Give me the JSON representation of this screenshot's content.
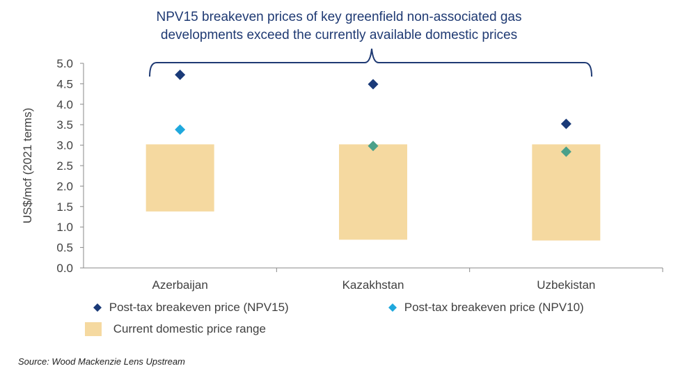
{
  "chart_data": {
    "type": "range-bar-with-markers",
    "title_lines": [
      "NPV15 breakeven prices of key greenfield non-associated gas",
      "developments exceed the currently available domestic prices"
    ],
    "ylabel": "US$/mcf (2021 terms)",
    "xlabel": "",
    "ylim": [
      0,
      5
    ],
    "yticks": [
      "0.0",
      "0.5",
      "1.0",
      "1.5",
      "2.0",
      "2.5",
      "3.0",
      "3.5",
      "4.0",
      "4.5",
      "5.0"
    ],
    "categories": [
      "Azerbaijan",
      "Kazakhstan",
      "Uzbekistan"
    ],
    "domestic_price_range": [
      {
        "low": 1.38,
        "high": 3.02
      },
      {
        "low": 0.69,
        "high": 3.02
      },
      {
        "low": 0.67,
        "high": 3.02
      }
    ],
    "series": [
      {
        "name": "Post-tax breakeven price (NPV15)",
        "values": [
          4.72,
          4.49,
          3.52
        ],
        "color": "#1a3a78",
        "marker": "diamond"
      },
      {
        "name": "Post-tax breakeven price (NPV10)",
        "values": [
          3.38,
          2.98,
          2.84
        ],
        "color": "#1fa8dd",
        "marker": "diamond"
      }
    ],
    "range_legend": "Current domestic price range",
    "range_color": "#f5d9a0",
    "bracket_color": "#1f3a73",
    "grid": false
  },
  "source": "Source: Wood Mackenzie Lens Upstream"
}
